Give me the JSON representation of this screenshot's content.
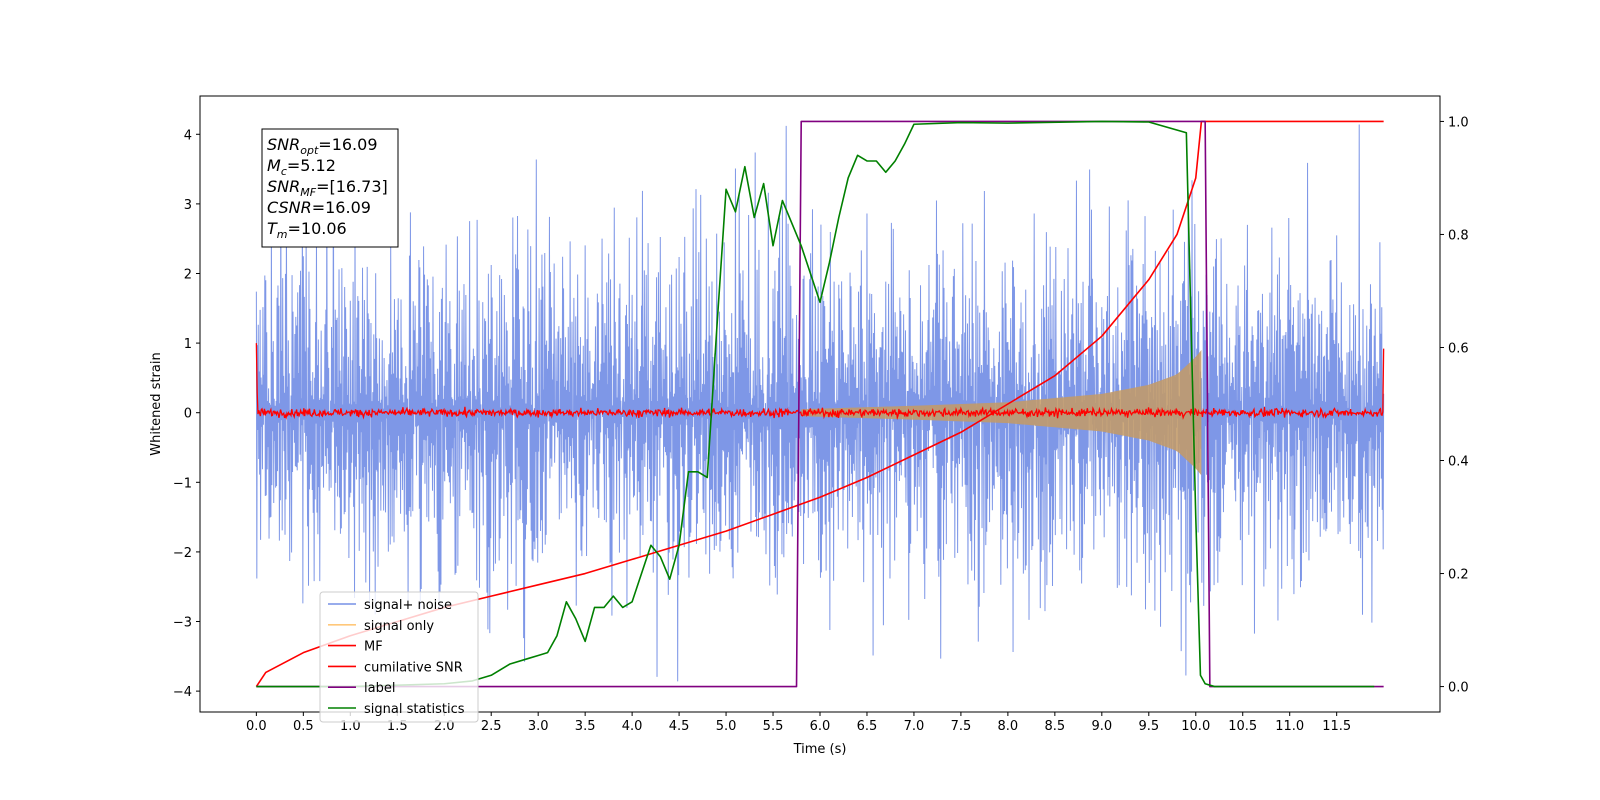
{
  "chart_data": {
    "type": "line",
    "title": "",
    "xlabel": "Time (s)",
    "ylabel": "Whitened strain",
    "xlim": [
      -0.6,
      12.6
    ],
    "ylim": [
      -4.3,
      4.55
    ],
    "y2lim": [
      -0.045,
      1.045
    ],
    "xticks": [
      0.0,
      0.5,
      1.0,
      1.5,
      2.0,
      2.5,
      3.0,
      3.5,
      4.0,
      4.5,
      5.0,
      5.5,
      6.0,
      6.5,
      7.0,
      7.5,
      8.0,
      8.5,
      9.0,
      9.5,
      10.0,
      10.5,
      11.0,
      11.5
    ],
    "xtick_labels": [
      "0.0",
      "0.5",
      "1.0",
      "1.5",
      "2.0",
      "2.5",
      "3.0",
      "3.5",
      "4.0",
      "4.5",
      "5.0",
      "5.5",
      "6.0",
      "6.5",
      "7.0",
      "7.5",
      "8.0",
      "8.5",
      "9.0",
      "9.5",
      "10.0",
      "10.5",
      "11.0",
      "11.5"
    ],
    "yticks": [
      -4,
      -3,
      -2,
      -1,
      0,
      1,
      2,
      3,
      4
    ],
    "ytick_labels": [
      "−4",
      "−3",
      "−2",
      "−1",
      "0",
      "1",
      "2",
      "3",
      "4"
    ],
    "y2ticks": [
      0.0,
      0.2,
      0.4,
      0.6,
      0.8,
      1.0
    ],
    "y2tick_labels": [
      "0.0",
      "0.2",
      "0.4",
      "0.6",
      "0.8",
      "1.0"
    ],
    "grid": false,
    "legend_position": "lower-left",
    "series": [
      {
        "name": "signal+ noise",
        "color": "#7791e6",
        "axis": "left",
        "kind": "noise-band",
        "x_range": [
          0.0,
          12.0
        ],
        "amplitude_typical": 2.2,
        "peak_max": 4.2,
        "peak_min": -3.9
      },
      {
        "name": "signal only",
        "color": "#ffc87a",
        "axis": "left",
        "kind": "chirp-envelope",
        "x_range": [
          5.8,
          10.06
        ],
        "envelope": [
          [
            5.8,
            0.05
          ],
          [
            7.0,
            0.1
          ],
          [
            8.0,
            0.15
          ],
          [
            9.0,
            0.27
          ],
          [
            9.5,
            0.4
          ],
          [
            9.8,
            0.55
          ],
          [
            10.0,
            0.8
          ],
          [
            10.06,
            0.9
          ]
        ]
      },
      {
        "name": "MF",
        "color": "#ff0000",
        "axis": "left",
        "kind": "noisy-flat",
        "x_range": [
          0.0,
          12.0
        ],
        "level": 0.0,
        "jitter": 0.08,
        "start_value": 1.0,
        "end_value": 0.92
      },
      {
        "name": "cumilative SNR",
        "color": "#ff0000",
        "axis": "right",
        "x": [
          0.0,
          0.1,
          0.5,
          1.0,
          1.5,
          2.0,
          2.5,
          3.0,
          3.5,
          4.0,
          4.5,
          5.0,
          5.5,
          6.0,
          6.5,
          7.0,
          7.5,
          8.0,
          8.5,
          9.0,
          9.5,
          9.8,
          10.0,
          10.06,
          12.0
        ],
        "y": [
          0.0,
          0.025,
          0.06,
          0.09,
          0.115,
          0.14,
          0.16,
          0.18,
          0.2,
          0.225,
          0.25,
          0.275,
          0.305,
          0.335,
          0.37,
          0.41,
          0.45,
          0.5,
          0.55,
          0.62,
          0.72,
          0.8,
          0.9,
          1.0,
          1.0
        ]
      },
      {
        "name": "label",
        "color": "#800080",
        "axis": "right",
        "x": [
          0.0,
          5.75,
          5.8,
          10.1,
          10.15,
          12.0
        ],
        "y": [
          0.0,
          0.0,
          1.0,
          1.0,
          0.0,
          0.0
        ]
      },
      {
        "name": "signal statistics",
        "color": "#008000",
        "axis": "right",
        "x": [
          0.0,
          1.0,
          2.0,
          2.3,
          2.5,
          2.7,
          2.9,
          3.0,
          3.1,
          3.2,
          3.3,
          3.4,
          3.5,
          3.6,
          3.7,
          3.8,
          3.9,
          4.0,
          4.1,
          4.2,
          4.3,
          4.4,
          4.5,
          4.6,
          4.7,
          4.8,
          4.9,
          5.0,
          5.1,
          5.2,
          5.3,
          5.4,
          5.5,
          5.6,
          5.7,
          5.8,
          5.9,
          6.0,
          6.1,
          6.2,
          6.3,
          6.4,
          6.5,
          6.6,
          6.7,
          6.8,
          6.9,
          7.0,
          7.5,
          8.0,
          9.0,
          9.5,
          9.9,
          10.0,
          10.05,
          10.1,
          10.2,
          11.0,
          11.9
        ],
        "y": [
          0.0,
          0.0,
          0.005,
          0.01,
          0.02,
          0.04,
          0.05,
          0.055,
          0.06,
          0.09,
          0.15,
          0.12,
          0.08,
          0.14,
          0.14,
          0.16,
          0.14,
          0.15,
          0.2,
          0.25,
          0.23,
          0.19,
          0.25,
          0.38,
          0.38,
          0.37,
          0.63,
          0.88,
          0.84,
          0.92,
          0.83,
          0.89,
          0.78,
          0.86,
          0.82,
          0.78,
          0.73,
          0.68,
          0.75,
          0.83,
          0.9,
          0.94,
          0.93,
          0.93,
          0.91,
          0.93,
          0.96,
          0.995,
          0.998,
          0.997,
          1.0,
          0.999,
          0.98,
          0.3,
          0.02,
          0.005,
          0.0,
          0.0,
          0.0
        ]
      }
    ],
    "annotation": [
      {
        "base": "SNR",
        "sub": "opt",
        "value": "=16.09"
      },
      {
        "base": "M",
        "sub": "c",
        "value": "=5.12"
      },
      {
        "base": "SNR",
        "sub": "MF",
        "value": "=[16.73]"
      },
      {
        "base": "CSNR",
        "sub": "",
        "value": "=16.09"
      },
      {
        "base": "T",
        "sub": "m",
        "value": "=10.06"
      }
    ]
  }
}
